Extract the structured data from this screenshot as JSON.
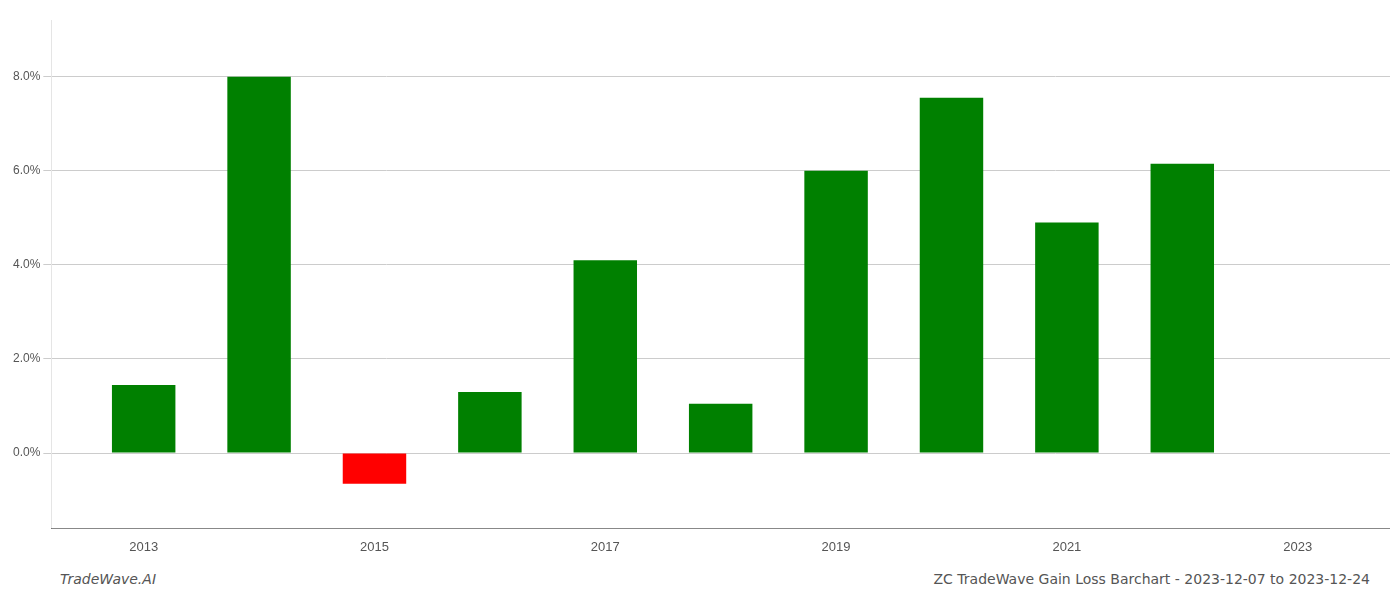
{
  "chart_data": {
    "type": "bar",
    "title": "ZC TradeWave Gain Loss Barchart - 2023-12-07 to 2023-12-24",
    "annotations": [
      {
        "text": "TradeWave.AI"
      }
    ],
    "x": [
      2013,
      2014,
      2015,
      2016,
      2017,
      2018,
      2019,
      2020,
      2021,
      2022
    ],
    "values": [
      0.0145,
      0.08,
      -0.0065,
      0.013,
      0.041,
      0.0105,
      0.06,
      0.0755,
      0.049,
      0.0615
    ],
    "colors": [
      "#008000",
      "#008000",
      "#ff0000",
      "#008000",
      "#008000",
      "#008000",
      "#008000",
      "#008000",
      "#008000",
      "#008000"
    ],
    "xlim": [
      2012.2,
      2023.8
    ],
    "xticks": [
      2013,
      2015,
      2017,
      2019,
      2021,
      2023
    ],
    "ylim": [
      -0.016,
      0.092
    ],
    "yticks": [
      {
        "value": 0.0,
        "label": "0.0%"
      },
      {
        "value": 0.02,
        "label": "2.0%"
      },
      {
        "value": 0.04,
        "label": "4.0%"
      },
      {
        "value": 0.06,
        "label": "6.0%"
      },
      {
        "value": 0.08,
        "label": "8.0%"
      }
    ],
    "grid": true
  }
}
